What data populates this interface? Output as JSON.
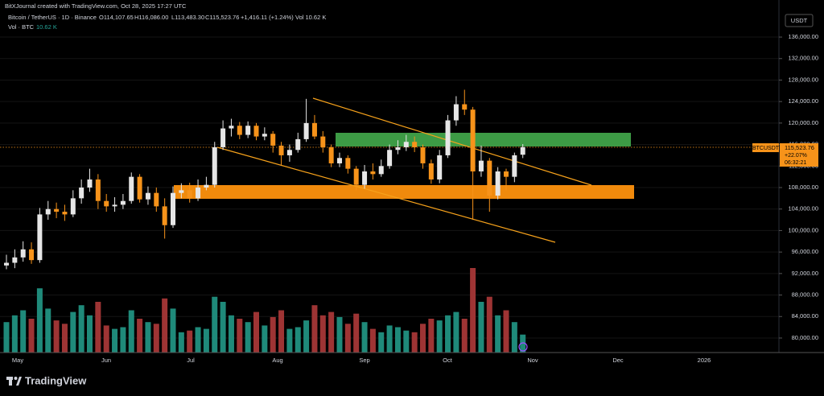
{
  "header": {
    "credit": "BitXJournal created with TradingView.com, Oct 28, 2025 17:27 UTC",
    "symbol": "Bitcoin / TetherUS · 1D · Binance",
    "ohlc": [
      "O114,107.65",
      "H116,086.00",
      "L113,483.30",
      "C115,523.76",
      "+1,416.11 (+1.24%)",
      "Vol 10.62 K"
    ],
    "volume_title": "Vol · BTC",
    "volume_value": "10.62 K"
  },
  "price_scale": {
    "currency": "USDT",
    "ticker": "BTCUSDT",
    "last": "115,523.76",
    "change": "+22.07%",
    "countdown": "06:32:21"
  },
  "footer": {
    "brand": "TradingView"
  },
  "chart_data": {
    "type": "candlestick",
    "grid": true,
    "up_color": "#e6e6e6",
    "down_color": "#f7931a",
    "volume_up_color": "#1f8a7a",
    "volume_down_color": "#9e3434",
    "xaxis_labels": [
      "May",
      "Jun",
      "Jul",
      "Aug",
      "Sep",
      "Oct",
      "Nov",
      "Dec",
      "2026"
    ],
    "ylim": [
      77300,
      140800
    ],
    "yticks": [
      {
        "value": 80000,
        "label": "80,000.00"
      },
      {
        "value": 84000,
        "label": "84,000.00"
      },
      {
        "value": 88000,
        "label": "88,000.00"
      },
      {
        "value": 92000,
        "label": "92,000.00"
      },
      {
        "value": 96000,
        "label": "96,000.00"
      },
      {
        "value": 100000,
        "label": "100,000.00"
      },
      {
        "value": 104000,
        "label": "104,000.00"
      },
      {
        "value": 108000,
        "label": "108,000.00"
      },
      {
        "value": 112000,
        "label": "112,000.00"
      },
      {
        "value": 116000,
        "label": "116,000.00"
      },
      {
        "value": 120000,
        "label": "120,000.00"
      },
      {
        "value": 124000,
        "label": "124,000.00"
      },
      {
        "value": 128000,
        "label": "128,000.00"
      },
      {
        "value": 132000,
        "label": "132,000.00"
      },
      {
        "value": 136000,
        "label": "136,000.00"
      }
    ],
    "open": [
      93500,
      94000,
      95000,
      96500,
      94500,
      103000,
      104000,
      103500,
      103000,
      106000,
      108000,
      109500,
      105500,
      104500,
      104800,
      105500,
      110000,
      105800,
      107000,
      104500,
      101000,
      107000,
      107500,
      106000,
      108000,
      108500,
      115500,
      119000,
      119500,
      117800,
      119500,
      117500,
      118000,
      115800,
      114000,
      115000,
      117000,
      120000,
      117500,
      115500,
      112500,
      113500,
      111500,
      108500,
      111000,
      110500,
      112000,
      115000,
      115500,
      116500,
      115500,
      112500,
      109500,
      114000,
      120500,
      123500,
      122500,
      111000,
      113000,
      106500,
      111000,
      110000,
      114107.65
    ],
    "high": [
      95500,
      96500,
      98000,
      97800,
      104200,
      105500,
      105200,
      104800,
      107500,
      109500,
      111500,
      110500,
      106800,
      106200,
      106800,
      110800,
      110500,
      108200,
      108000,
      106000,
      108200,
      108800,
      108900,
      109500,
      110000,
      116500,
      120500,
      120800,
      120200,
      120300,
      120000,
      119200,
      118500,
      116500,
      116000,
      118200,
      124500,
      121500,
      118500,
      116000,
      114500,
      114000,
      112000,
      112200,
      112500,
      113200,
      116000,
      116800,
      117800,
      117500,
      116000,
      113200,
      115000,
      121500,
      125000,
      126200,
      123000,
      115800,
      113500,
      111800,
      111500,
      114500,
      116086
    ],
    "low": [
      92800,
      93000,
      94200,
      93800,
      94000,
      102000,
      102300,
      101800,
      102500,
      105000,
      107200,
      104000,
      103500,
      103500,
      104000,
      105000,
      105200,
      104800,
      103500,
      98500,
      100500,
      106000,
      105200,
      105500,
      107500,
      108000,
      115000,
      117500,
      117000,
      117200,
      116800,
      116800,
      114500,
      112200,
      112800,
      114500,
      116500,
      117000,
      114500,
      111800,
      111800,
      110600,
      107500,
      107800,
      109500,
      110000,
      111500,
      114200,
      114800,
      114600,
      111500,
      108700,
      108800,
      113500,
      119500,
      121500,
      102000,
      110000,
      103500,
      105800,
      107500,
      109000,
      113483.3
    ],
    "close": [
      94000,
      95000,
      96500,
      94500,
      103000,
      104000,
      103500,
      103000,
      106000,
      108000,
      109500,
      105500,
      104500,
      104800,
      105500,
      110000,
      105800,
      107000,
      104500,
      101000,
      107000,
      107500,
      106000,
      108000,
      108500,
      115500,
      119000,
      119500,
      117800,
      119500,
      117500,
      118000,
      115800,
      114000,
      115000,
      117000,
      120000,
      117500,
      115500,
      112500,
      113500,
      111500,
      108500,
      111000,
      110500,
      112000,
      115000,
      115500,
      116500,
      115500,
      112500,
      109500,
      114000,
      120500,
      123500,
      122500,
      111000,
      113000,
      106500,
      111000,
      110000,
      114000,
      115523.76
    ],
    "volume": [
      18000,
      22000,
      25000,
      20000,
      38000,
      26000,
      19000,
      17000,
      24000,
      28000,
      22000,
      30000,
      16000,
      14000,
      15000,
      25000,
      20000,
      18000,
      17000,
      32000,
      26000,
      12000,
      13000,
      15000,
      14000,
      33000,
      30000,
      22000,
      20000,
      18000,
      24000,
      16000,
      21000,
      25000,
      14000,
      15000,
      19000,
      28000,
      22000,
      24000,
      21000,
      17000,
      23000,
      18000,
      14000,
      12000,
      16000,
      15000,
      13000,
      12000,
      17000,
      20000,
      19000,
      22000,
      24000,
      20000,
      50000,
      30000,
      33000,
      22000,
      25000,
      18000,
      10620
    ]
  }
}
